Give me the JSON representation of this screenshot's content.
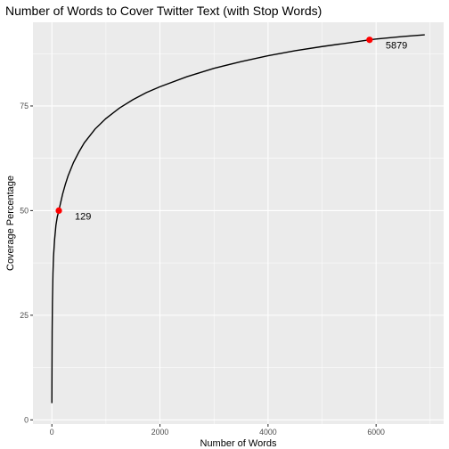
{
  "chart_data": {
    "type": "line",
    "title": "Number of Words to Cover Twitter Text (with Stop Words)",
    "xlabel": "Number of Words",
    "ylabel": "Coverage Percentage",
    "xlim": [
      -350,
      7250
    ],
    "ylim": [
      -1,
      95
    ],
    "x_ticks": [
      0,
      2000,
      4000,
      6000
    ],
    "y_ticks": [
      0,
      25,
      50,
      75
    ],
    "grid": true,
    "series": [
      {
        "x": [
          0,
          1,
          3,
          5,
          10,
          20,
          30,
          50,
          75,
          100,
          129,
          150,
          200,
          250,
          300,
          400,
          500,
          600,
          800,
          1000,
          1250,
          1500,
          1750,
          2000,
          2500,
          3000,
          3500,
          4000,
          4500,
          5000,
          5500,
          5879,
          6000,
          6500,
          6900
        ],
        "y": [
          4,
          8,
          15,
          21,
          28,
          35,
          39,
          43,
          46.5,
          48.5,
          50,
          51.2,
          54,
          56.3,
          58.3,
          61.5,
          64,
          66.2,
          69.5,
          72,
          74.5,
          76.5,
          78.2,
          79.6,
          82,
          84,
          85.6,
          87,
          88.2,
          89.2,
          90.1,
          90.8,
          91,
          91.6,
          92
        ]
      }
    ],
    "highlights": [
      {
        "x": 129,
        "y": 50,
        "label": "129"
      },
      {
        "x": 5879,
        "y": 90.8,
        "label": "5879"
      }
    ]
  }
}
